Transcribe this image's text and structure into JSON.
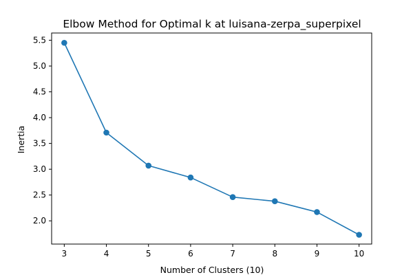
{
  "chart_data": {
    "type": "line",
    "title": "Elbow Method for Optimal k at luisana-zerpa_superpixel",
    "xlabel": "Number of Clusters (10)",
    "ylabel": "Inertia",
    "x": [
      3,
      4,
      5,
      6,
      7,
      8,
      9,
      10
    ],
    "series": [
      {
        "values": [
          5.45,
          3.71,
          3.07,
          2.84,
          2.46,
          2.38,
          2.17,
          1.73
        ]
      }
    ],
    "xlim": [
      2.7,
      10.3
    ],
    "ylim": [
      1.55,
      5.64
    ],
    "xticks": [
      3,
      4,
      5,
      6,
      7,
      8,
      9,
      10
    ],
    "xtick_labels": [
      "3",
      "4",
      "5",
      "6",
      "7",
      "8",
      "9",
      "10"
    ],
    "yticks": [
      2.0,
      2.5,
      3.0,
      3.5,
      4.0,
      4.5,
      5.0,
      5.5
    ],
    "ytick_labels": [
      "2.0",
      "2.5",
      "3.0",
      "3.5",
      "4.0",
      "4.5",
      "5.0",
      "5.5"
    ],
    "grid": false,
    "marker": "circle",
    "line_color": "#1f77b4"
  }
}
